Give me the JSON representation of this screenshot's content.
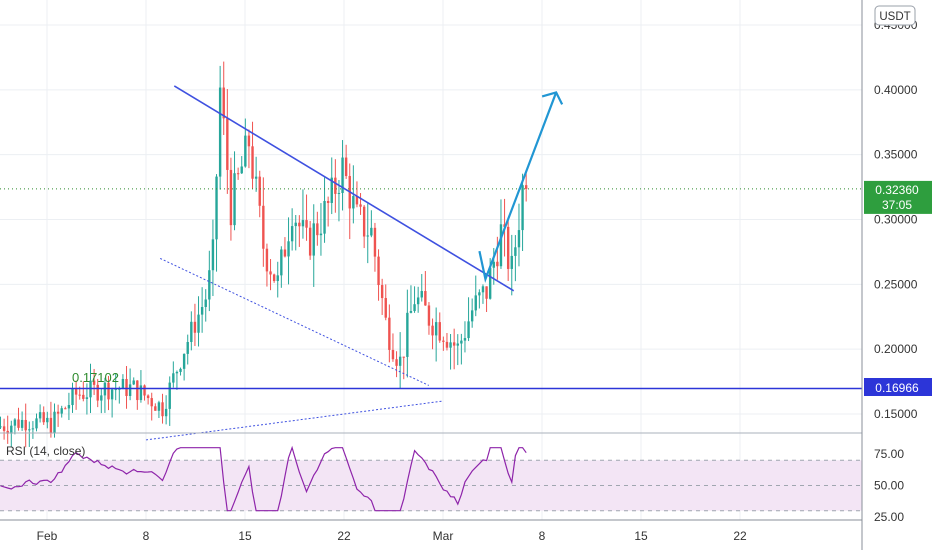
{
  "quote_currency": "USDT",
  "rsi_label": "RSI (14, close)",
  "current_price": "0.32360",
  "countdown": "37:05",
  "support_price": "0.16966",
  "support_annotation": "0.17102",
  "colors": {
    "up": "#26a69a",
    "down": "#ef5350",
    "wedge_line": "#3f51e0",
    "projection_arrow": "#2196d3",
    "support_line": "#2c35d8",
    "price_dotted": "#2e8b2e",
    "current_price_badge": "#2e9e3e",
    "support_badge": "#2c35d8",
    "rsi_line": "#8e24aa",
    "rsi_band": "#f3e5f5",
    "grid": "#eceff3",
    "axis_text": "#333333"
  },
  "chart_data": [
    {
      "type": "candlestick",
      "x_ticks": [
        "Feb",
        "8",
        "15",
        "22",
        "Mar",
        "8",
        "15",
        "22"
      ],
      "y_ticks": [
        "0.15000",
        "0.20000",
        "0.25000",
        "0.30000",
        "0.35000",
        "0.40000",
        "0.45000"
      ],
      "ylim": [
        0.135,
        0.455
      ],
      "grid": true,
      "approx_range": {
        "start_close": 0.14,
        "peak_high": 0.4,
        "wedge_low": 0.19,
        "last_close": 0.3236
      },
      "annotations": {
        "horizontal_support": 0.16966,
        "label_0_17102": 0.17102,
        "current_price_line": 0.3236,
        "descending_trendline": [
          {
            "x": "Feb 10",
            "y": 0.403
          },
          {
            "x": "Mar 6",
            "y": 0.245
          }
        ],
        "lower_wedge_line": [
          {
            "x": "Feb 9",
            "y": 0.27
          },
          {
            "x": "Feb 28",
            "y": 0.172
          }
        ],
        "rising_dotted_line": [
          {
            "x": "Feb 8",
            "y": 0.13
          },
          {
            "x": "Mar 1",
            "y": 0.16
          }
        ],
        "projection_arrow": [
          {
            "x": "Mar 4",
            "y": 0.254
          },
          {
            "x": "Mar 9",
            "y": 0.398
          }
        ]
      }
    },
    {
      "type": "line",
      "title": "RSI (14, close)",
      "y_ticks": [
        "25.00",
        "50.00",
        "75.00"
      ],
      "ylim": [
        24,
        83
      ],
      "band": [
        30,
        70
      ],
      "last_value": 76
    }
  ]
}
